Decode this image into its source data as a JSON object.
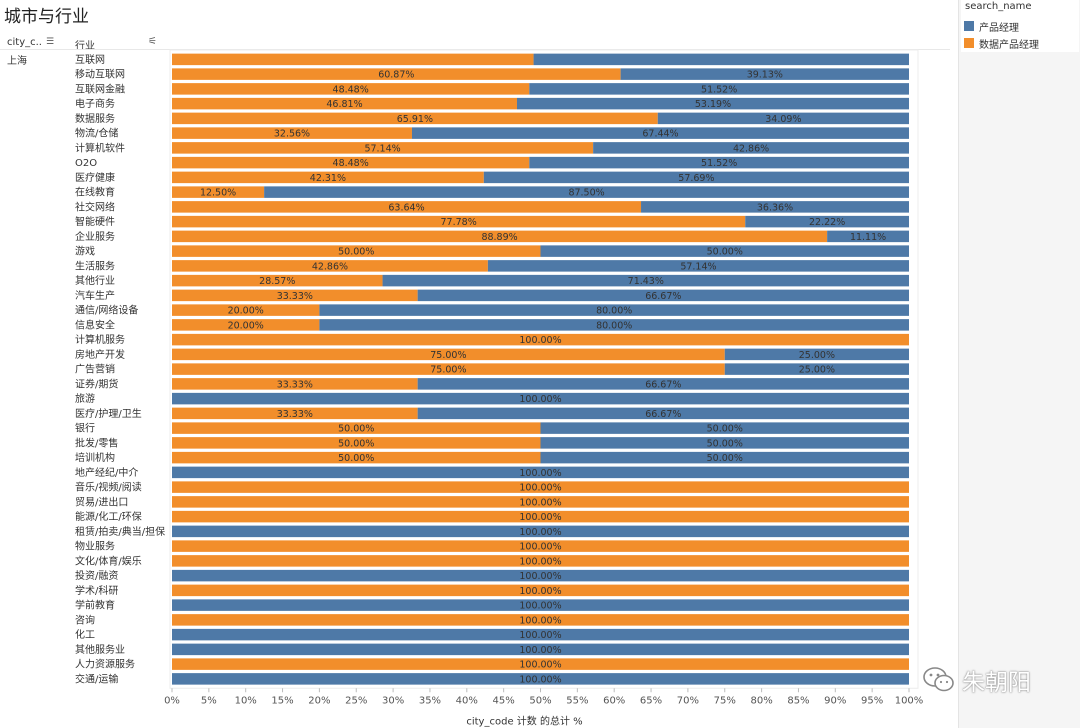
{
  "title": "城市与行业",
  "columns": {
    "city": "city_c..",
    "industry": "行业"
  },
  "city_value": "上海",
  "legend": {
    "title": "search_name",
    "items": [
      {
        "label": "产品经理",
        "color": "#4e79a7"
      },
      {
        "label": "数据产品经理",
        "color": "#f28e2b"
      }
    ]
  },
  "watermark": "朱朝阳",
  "chart_data": {
    "type": "bar",
    "orientation": "horizontal",
    "stacked": true,
    "xlabel": "city_code 计数 的总计 %",
    "xlim": [
      0,
      100
    ],
    "x_ticks": [
      "0%",
      "5%",
      "10%",
      "15%",
      "20%",
      "25%",
      "30%",
      "35%",
      "40%",
      "45%",
      "50%",
      "55%",
      "60%",
      "65%",
      "70%",
      "75%",
      "80%",
      "85%",
      "90%",
      "95%",
      "100%"
    ],
    "categories": [
      "互联网",
      "移动互联网",
      "互联网金融",
      "电子商务",
      "数据服务",
      "物流/仓储",
      "计算机软件",
      "O2O",
      "医疗健康",
      "在线教育",
      "社交网络",
      "智能硬件",
      "企业服务",
      "游戏",
      "生活服务",
      "其他行业",
      "汽车生产",
      "通信/网络设备",
      "信息安全",
      "计算机服务",
      "房地产开发",
      "广告营销",
      "证券/期货",
      "旅游",
      "医疗/护理/卫生",
      "银行",
      "批发/零售",
      "培训机构",
      "地产经纪/中介",
      "音乐/视频/阅读",
      "贸易/进出口",
      "能源/化工/环保",
      "租赁/拍卖/典当/担保",
      "物业服务",
      "文化/体育/娱乐",
      "投资/融资",
      "学术/科研",
      "学前教育",
      "咨询",
      "化工",
      "其他服务业",
      "人力资源服务",
      "交通/运输"
    ],
    "series": [
      {
        "name": "数据产品经理",
        "values": [
          49.06,
          60.87,
          48.48,
          46.81,
          65.91,
          32.56,
          57.14,
          48.48,
          42.31,
          12.5,
          63.64,
          77.78,
          88.89,
          50.0,
          42.86,
          28.57,
          33.33,
          20.0,
          20.0,
          100.0,
          75.0,
          75.0,
          33.33,
          0,
          33.33,
          50.0,
          50.0,
          50.0,
          0,
          100.0,
          100.0,
          100.0,
          0,
          100.0,
          100.0,
          0,
          100.0,
          0,
          100.0,
          0,
          0,
          100.0,
          0
        ],
        "labels": [
          "",
          "60.87%",
          "48.48%",
          "46.81%",
          "65.91%",
          "32.56%",
          "57.14%",
          "48.48%",
          "42.31%",
          "12.50%",
          "63.64%",
          "77.78%",
          "88.89%",
          "50.00%",
          "42.86%",
          "28.57%",
          "33.33%",
          "20.00%",
          "20.00%",
          "100.00%",
          "75.00%",
          "75.00%",
          "33.33%",
          "",
          "33.33%",
          "50.00%",
          "50.00%",
          "50.00%",
          "",
          "100.00%",
          "100.00%",
          "100.00%",
          "",
          "100.00%",
          "100.00%",
          "",
          "100.00%",
          "",
          "100.00%",
          "",
          "",
          "100.00%",
          ""
        ]
      },
      {
        "name": "产品经理",
        "values": [
          50.94,
          39.13,
          51.52,
          53.19,
          34.09,
          67.44,
          42.86,
          51.52,
          57.69,
          87.5,
          36.36,
          22.22,
          11.11,
          50.0,
          57.14,
          71.43,
          66.67,
          80.0,
          80.0,
          0,
          25.0,
          25.0,
          66.67,
          100.0,
          66.67,
          50.0,
          50.0,
          50.0,
          100.0,
          0,
          0,
          0,
          100.0,
          0,
          0,
          100.0,
          0,
          100.0,
          0,
          100.0,
          100.0,
          0,
          100.0
        ],
        "labels": [
          "",
          "39.13%",
          "51.52%",
          "53.19%",
          "34.09%",
          "67.44%",
          "42.86%",
          "51.52%",
          "57.69%",
          "87.50%",
          "36.36%",
          "22.22%",
          "11.11%",
          "50.00%",
          "57.14%",
          "71.43%",
          "66.67%",
          "80.00%",
          "80.00%",
          "",
          "25.00%",
          "25.00%",
          "66.67%",
          "100.00%",
          "66.67%",
          "50.00%",
          "50.00%",
          "50.00%",
          "100.00%",
          "",
          "",
          "",
          "100.00%",
          "",
          "",
          "100.00%",
          "",
          "100.00%",
          "",
          "100.00%",
          "100.00%",
          "",
          "100.00%"
        ]
      }
    ]
  }
}
